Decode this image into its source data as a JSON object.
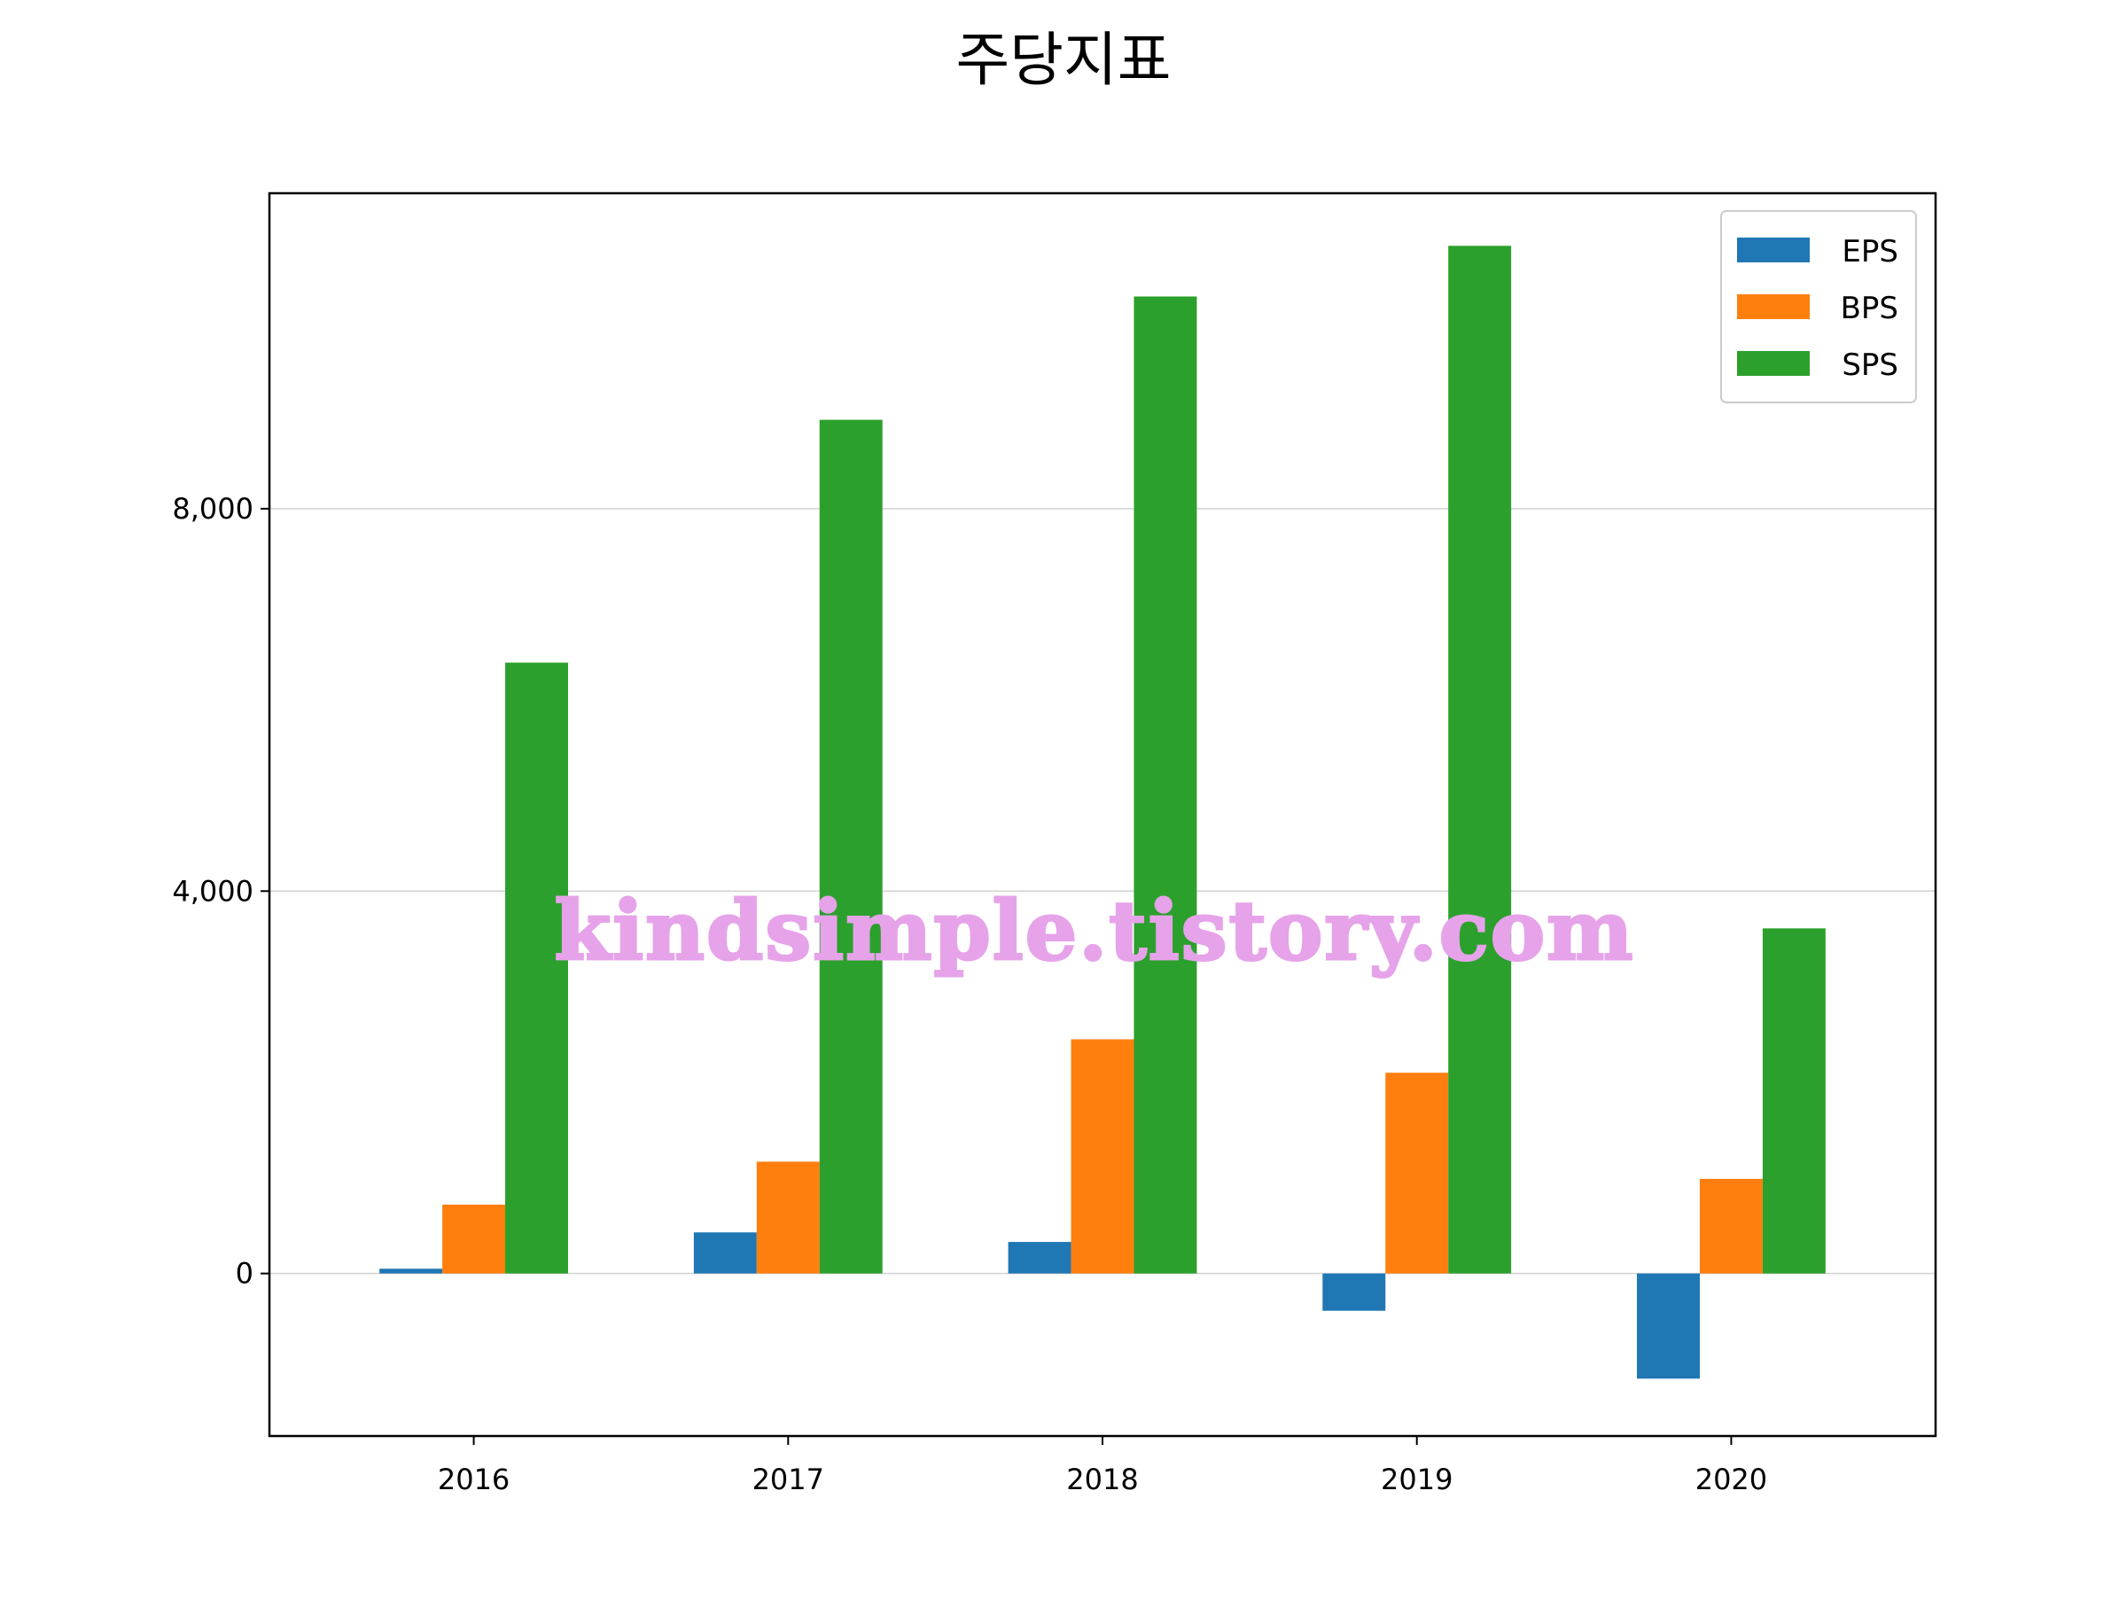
{
  "chart_data": {
    "type": "bar",
    "title": "주당지표",
    "xlabel": "",
    "ylabel": "",
    "categories": [
      "2016",
      "2017",
      "2018",
      "2019",
      "2020"
    ],
    "series": [
      {
        "name": "EPS",
        "color": "#1f77b4",
        "values": [
          50,
          430,
          330,
          -390,
          -1100
        ]
      },
      {
        "name": "BPS",
        "color": "#ff7f0e",
        "values": [
          720,
          1170,
          2450,
          2100,
          990
        ]
      },
      {
        "name": "SPS",
        "color": "#2ca02c",
        "values": [
          6390,
          8930,
          10220,
          10750,
          3610
        ]
      }
    ],
    "ylim": [
      -1700,
      11300
    ],
    "yticks": [
      0,
      4000,
      8000
    ],
    "ytick_labels": [
      "0",
      "4,000",
      "8,000"
    ],
    "grid": "y",
    "legend_position": "top-right",
    "watermark": "kindsimple.tistory.com"
  }
}
